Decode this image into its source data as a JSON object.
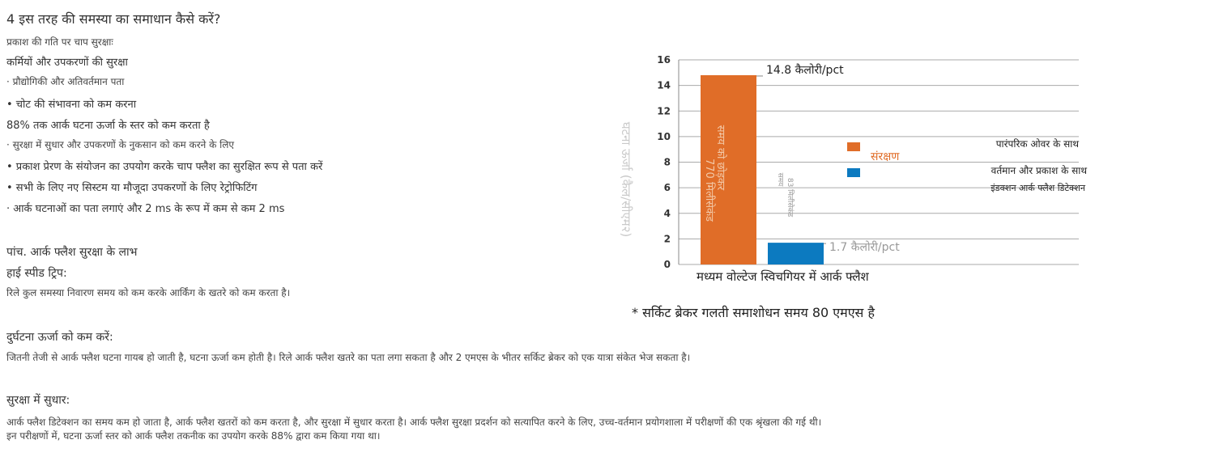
{
  "left": {
    "title": "4 इस तरह की समस्या का समाधान कैसे करें?",
    "subtitle": "प्रकाश की गति पर चाप सुरक्षाः",
    "protect_heading": "कर्मियों और उपकरणों की सुरक्षा",
    "bullet_tech": "· प्रौद्योगिकी और अतिवर्तमान पता",
    "bullet_injury": "•  चोट की संभावना को कम करना",
    "reduce88": "88% तक आर्क घटना ऊर्जा के स्तर को कम करता है",
    "bullet_safety": "· सुरक्षा में सुधार और उपकरणों के नुकसान को कम करने के लिए",
    "bullet_detect": "•  प्रकाश प्रेरण के संयोजन का उपयोग करके चाप फ्लैश का सुरक्षित रूप से पता करें",
    "bullet_retrofit": "•  सभी के लिए नए सिस्टम या मौजूदा उपकरणों के लिए रेट्रोफिटिंग",
    "bullet_2ms": "· आर्क घटनाओं का पता लगाएं और 2 ms के रूप में कम से कम 2 ms",
    "benefits_heading": "पांच. आर्क फ्लैश सुरक्षा के लाभ",
    "highspeed_heading": "हाई स्पीड ट्रिप:",
    "relay_text": "रिले कुल समस्या निवारण समय को कम करके आर्किंग के खतरे को कम करता है।",
    "reduce_energy_heading": "दुर्घटना ऊर्जा को कम करें:",
    "reduce_energy_text": "जितनी तेजी से आर्क फ्लैश घटना गायब हो जाती है, घटना ऊर्जा कम होती है। रिले आर्क फ्लैश खतरे का पता लगा सकता है और 2 एमएस के भीतर सर्किट ब्रेकर को एक यात्रा संकेत भेज सकता है।",
    "improve_heading": "सुरक्षा में सुधार:",
    "improve_text1": "आर्क फ्लैश डिटेक्शन का समय कम हो जाता है, आर्क फ्लैश खतरों को कम करता है, और सुरक्षा में सुधार करता है। आर्क फ्लैश सुरक्षा प्रदर्शन को सत्यापित करने के लिए, उच्च-वर्तमान प्रयोगशाला में परीक्षणों की एक श्रृंखला की गई थी।",
    "improve_text2": "इन परीक्षणों में, घटना ऊर्जा स्तर को आर्क फ्लैश तकनीक का उपयोग करके 88% द्वारा कम किया गया था।"
  },
  "chart_data": {
    "type": "bar",
    "ylim": [
      0,
      16
    ],
    "yticks": [
      "0",
      "2",
      "4",
      "6",
      "8",
      "10",
      "12",
      "14",
      "16"
    ],
    "ylabel": "घटना ऊर्जा (कैल/सीएम२)",
    "xlabel": "मध्यम वोल्टेज स्विचगियर में आर्क फ्लैश",
    "footnote": "* सर्किट ब्रेकर गलती समाशोधन समय 80 एमएस है",
    "bars": [
      {
        "value": 14.8,
        "label": "14.8 कैलोरी/pct",
        "inner_line1": "समय को छोड़कर",
        "inner_line2": "770 मिलीसेकंड",
        "color": "#e06d28"
      },
      {
        "value": 1.7,
        "label": "1.7 कैलोरी/pct",
        "inner_line1": "83 मिलीसेकंड",
        "inner_line2": "समय",
        "color": "#0c7ac0"
      }
    ],
    "legend": {
      "header": "संरक्षण",
      "items": [
        {
          "name": "पारंपरिक ओवर के साथ",
          "color": "#e06d28"
        },
        {
          "name": "वर्तमान और प्रकाश के साथ",
          "color": "#0c7ac0"
        }
      ],
      "extra": "इंडक्शन आर्क फ्लैश डिटेक्शन"
    }
  }
}
